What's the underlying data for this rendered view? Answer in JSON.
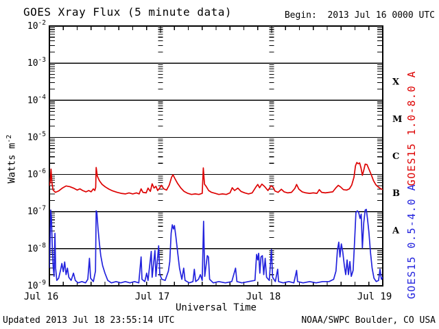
{
  "title": "GOES Xray Flux (5 minute data)",
  "begin_label": "Begin:  2013 Jul 16 0000 UTC",
  "footer": {
    "updated": "Updated 2013 Jul 18 23:55:14 UTC",
    "source": "NOAA/SWPC Boulder, CO USA"
  },
  "colors": {
    "background": "#ffffff",
    "axis": "#000000",
    "long_channel": "#dd0000",
    "short_channel": "#2222dd"
  },
  "chart_data": {
    "type": "line",
    "title": "GOES Xray Flux (5 minute data)",
    "xlabel": "Universal Time",
    "ylabel_base": "Watts m",
    "ylabel_exponent": "-2",
    "x_unit": "hours from 2013 Jul 16 0000 UTC",
    "x_range_hours": [
      0,
      72
    ],
    "x_minor_tick_hours": 3,
    "x_major_ticks": [
      {
        "label": "Jul 16",
        "hour": 0
      },
      {
        "label": "Jul 17",
        "hour": 24
      },
      {
        "label": "Jul 18",
        "hour": 48
      },
      {
        "label": "Jul 19",
        "hour": 72
      }
    ],
    "y_scale": "log",
    "y_range": [
      1e-09,
      0.01
    ],
    "y_tick_exponents": [
      -2,
      -3,
      -4,
      -5,
      -6,
      -7,
      -8,
      -9
    ],
    "grid": "solid horizontal decade lines; dashed vertical lines at interior day boundaries",
    "flare_class_labels": [
      {
        "label": "X",
        "log_center": -3.5
      },
      {
        "label": "M",
        "log_center": -4.5
      },
      {
        "label": "C",
        "log_center": -5.5
      },
      {
        "label": "B",
        "log_center": -6.5
      },
      {
        "label": "A",
        "log_center": -7.5
      }
    ],
    "series": [
      {
        "name": "GOES15 1.0-8.0 A",
        "color": "#dd0000",
        "points": [
          [
            0,
            5e-07
          ],
          [
            0.2,
            6.5e-07
          ],
          [
            0.35,
            1.4e-06
          ],
          [
            0.55,
            6e-07
          ],
          [
            0.8,
            3.8e-07
          ],
          [
            1.3,
            3.3e-07
          ],
          [
            2,
            3.6e-07
          ],
          [
            2.8,
            4.3e-07
          ],
          [
            3.6,
            4.9e-07
          ],
          [
            4.4,
            4.7e-07
          ],
          [
            5.2,
            4.3e-07
          ],
          [
            6,
            3.8e-07
          ],
          [
            6.6,
            4.1e-07
          ],
          [
            7.2,
            3.7e-07
          ],
          [
            7.9,
            3.4e-07
          ],
          [
            8.5,
            3.7e-07
          ],
          [
            9,
            3.4e-07
          ],
          [
            9.5,
            4.1e-07
          ],
          [
            9.8,
            3.7e-07
          ],
          [
            10,
            4.5e-07
          ],
          [
            10.1,
            1.55e-06
          ],
          [
            10.35,
            9e-07
          ],
          [
            10.8,
            6.8e-07
          ],
          [
            11.4,
            5.4e-07
          ],
          [
            12.1,
            4.6e-07
          ],
          [
            12.9,
            4e-07
          ],
          [
            13.7,
            3.6e-07
          ],
          [
            14.6,
            3.3e-07
          ],
          [
            15.5,
            3.1e-07
          ],
          [
            16.4,
            3e-07
          ],
          [
            17.2,
            3.2e-07
          ],
          [
            18,
            3e-07
          ],
          [
            18.8,
            3.2e-07
          ],
          [
            19.4,
            3e-07
          ],
          [
            19.8,
            4.1e-07
          ],
          [
            20.2,
            3.3e-07
          ],
          [
            20.9,
            3.2e-07
          ],
          [
            21.3,
            4.3e-07
          ],
          [
            21.8,
            3.5e-07
          ],
          [
            22.2,
            5.6e-07
          ],
          [
            22.6,
            4.3e-07
          ],
          [
            23,
            4.8e-07
          ],
          [
            23.4,
            3.7e-07
          ],
          [
            23.8,
            4.3e-07
          ],
          [
            24.2,
            5.1e-07
          ],
          [
            24.7,
            4.1e-07
          ],
          [
            25.3,
            3.8e-07
          ],
          [
            25.9,
            5.2e-07
          ],
          [
            26.4,
            8.5e-07
          ],
          [
            26.7,
            9.8e-07
          ],
          [
            27.1,
            7.8e-07
          ],
          [
            27.7,
            5.7e-07
          ],
          [
            28.4,
            4.3e-07
          ],
          [
            29.1,
            3.5e-07
          ],
          [
            29.9,
            3.1e-07
          ],
          [
            30.7,
            2.9e-07
          ],
          [
            31.5,
            3e-07
          ],
          [
            32.3,
            2.9e-07
          ],
          [
            33,
            3.1e-07
          ],
          [
            33.25,
            1.5e-06
          ],
          [
            33.5,
            5.5e-07
          ],
          [
            33.9,
            4.7e-07
          ],
          [
            34.4,
            3.7e-07
          ],
          [
            35,
            3.3e-07
          ],
          [
            35.8,
            3.1e-07
          ],
          [
            36.6,
            2.9e-07
          ],
          [
            37.4,
            3e-07
          ],
          [
            38.2,
            2.9e-07
          ],
          [
            39,
            3.2e-07
          ],
          [
            39.5,
            4.4e-07
          ],
          [
            40,
            3.7e-07
          ],
          [
            40.7,
            4.3e-07
          ],
          [
            41.4,
            3.5e-07
          ],
          [
            42.2,
            3.2e-07
          ],
          [
            43,
            3e-07
          ],
          [
            43.8,
            3.2e-07
          ],
          [
            44.6,
            4.6e-07
          ],
          [
            45,
            5.4e-07
          ],
          [
            45.4,
            4.4e-07
          ],
          [
            45.9,
            5.5e-07
          ],
          [
            46.5,
            4.7e-07
          ],
          [
            47.2,
            3.7e-07
          ],
          [
            47.9,
            5e-07
          ],
          [
            48.4,
            4.4e-07
          ],
          [
            48.7,
            3.6e-07
          ],
          [
            49.4,
            3.3e-07
          ],
          [
            50.1,
            4e-07
          ],
          [
            50.7,
            3.4e-07
          ],
          [
            51.5,
            3.2e-07
          ],
          [
            52.3,
            3.3e-07
          ],
          [
            53,
            4.2e-07
          ],
          [
            53.4,
            5.4e-07
          ],
          [
            53.9,
            4e-07
          ],
          [
            54.6,
            3.4e-07
          ],
          [
            55.4,
            3.2e-07
          ],
          [
            56.2,
            3.1e-07
          ],
          [
            57,
            3.2e-07
          ],
          [
            57.8,
            3.1e-07
          ],
          [
            58.3,
            3.9e-07
          ],
          [
            58.8,
            3.3e-07
          ],
          [
            59.6,
            3.2e-07
          ],
          [
            60.4,
            3.3e-07
          ],
          [
            61.2,
            3.4e-07
          ],
          [
            61.9,
            4.4e-07
          ],
          [
            62.4,
            5.1e-07
          ],
          [
            62.9,
            4.6e-07
          ],
          [
            63.5,
            3.9e-07
          ],
          [
            64.2,
            3.8e-07
          ],
          [
            64.8,
            4.1e-07
          ],
          [
            65.3,
            5.2e-07
          ],
          [
            65.8,
            8.5e-07
          ],
          [
            66.1,
            1.7e-06
          ],
          [
            66.4,
            2.1e-06
          ],
          [
            66.7,
            1.95e-06
          ],
          [
            67,
            2.05e-06
          ],
          [
            67.3,
            1.5e-06
          ],
          [
            67.6,
            9.5e-07
          ],
          [
            67.9,
            1.3e-06
          ],
          [
            68.2,
            1.9e-06
          ],
          [
            68.6,
            1.85e-06
          ],
          [
            69,
            1.4e-06
          ],
          [
            69.5,
            1e-06
          ],
          [
            70,
            6.8e-07
          ],
          [
            70.5,
            5.3e-07
          ],
          [
            71,
            4.6e-07
          ],
          [
            71.5,
            4.2e-07
          ],
          [
            72,
            3.9e-07
          ]
        ]
      },
      {
        "name": "GOES15 0.5-4.0 A",
        "color": "#2222dd",
        "points": [
          [
            0,
            3e-09
          ],
          [
            0.15,
            1.5e-08
          ],
          [
            0.3,
            1.1e-07
          ],
          [
            0.45,
            7e-08
          ],
          [
            0.6,
            1.5e-08
          ],
          [
            0.8,
            3.5e-09
          ],
          [
            1,
            1.8e-09
          ],
          [
            1.2,
            2.6e-08
          ],
          [
            1.35,
            3e-09
          ],
          [
            1.6,
            1.4e-09
          ],
          [
            2,
            1.6e-09
          ],
          [
            2.4,
            2.6e-09
          ],
          [
            2.7,
            4e-09
          ],
          [
            3,
            2.4e-09
          ],
          [
            3.3,
            4.4e-09
          ],
          [
            3.6,
            2e-09
          ],
          [
            3.9,
            3e-09
          ],
          [
            4.2,
            1.7e-09
          ],
          [
            4.7,
            1.4e-09
          ],
          [
            5.2,
            2.2e-09
          ],
          [
            5.6,
            1.4e-09
          ],
          [
            6.2,
            1.2e-09
          ],
          [
            7,
            1.3e-09
          ],
          [
            7.8,
            1.2e-09
          ],
          [
            8.3,
            1.5e-09
          ],
          [
            8.65,
            5.5e-09
          ],
          [
            8.9,
            1.6e-09
          ],
          [
            9.5,
            1.3e-09
          ],
          [
            9.95,
            2.5e-09
          ],
          [
            10.1,
            1.05e-07
          ],
          [
            10.25,
            9.5e-08
          ],
          [
            10.5,
            3.5e-08
          ],
          [
            10.8,
            1.4e-08
          ],
          [
            11.1,
            6.5e-09
          ],
          [
            11.5,
            3.5e-09
          ],
          [
            12,
            2.2e-09
          ],
          [
            12.6,
            1.4e-09
          ],
          [
            13.4,
            1.2e-09
          ],
          [
            14.4,
            1.3e-09
          ],
          [
            15.4,
            1.2e-09
          ],
          [
            16.4,
            1.3e-09
          ],
          [
            17.4,
            1.2e-09
          ],
          [
            18.4,
            1.3e-09
          ],
          [
            19.3,
            1.2e-09
          ],
          [
            19.8,
            6e-09
          ],
          [
            20,
            1.5e-09
          ],
          [
            20.6,
            1.3e-09
          ],
          [
            21,
            2.2e-09
          ],
          [
            21.3,
            1.4e-09
          ],
          [
            22,
            8.5e-09
          ],
          [
            22.2,
            1.7e-09
          ],
          [
            22.8,
            9e-09
          ],
          [
            23,
            1.8e-09
          ],
          [
            23.6,
            1.2e-08
          ],
          [
            23.85,
            2e-09
          ],
          [
            24.3,
            1.5e-09
          ],
          [
            25,
            1.4e-09
          ],
          [
            25.7,
            2.5e-09
          ],
          [
            26,
            4.5e-09
          ],
          [
            26.3,
            2.6e-08
          ],
          [
            26.55,
            4.4e-08
          ],
          [
            26.8,
            3.4e-08
          ],
          [
            27,
            4.2e-08
          ],
          [
            27.3,
            2.2e-08
          ],
          [
            27.7,
            8e-09
          ],
          [
            28.1,
            3e-09
          ],
          [
            28.6,
            1.5e-09
          ],
          [
            29,
            3e-09
          ],
          [
            29.3,
            1.4e-09
          ],
          [
            30.2,
            1.2e-09
          ],
          [
            31,
            1.3e-09
          ],
          [
            31.3,
            2.8e-09
          ],
          [
            31.6,
            1.3e-09
          ],
          [
            32.2,
            1.5e-09
          ],
          [
            32.6,
            2e-09
          ],
          [
            33,
            1.4e-09
          ],
          [
            33.3,
            5.5e-08
          ],
          [
            33.55,
            1.8e-09
          ],
          [
            34.1,
            6.5e-09
          ],
          [
            34.35,
            6e-09
          ],
          [
            34.6,
            1.5e-09
          ],
          [
            35.4,
            1.2e-09
          ],
          [
            36.6,
            1.3e-09
          ],
          [
            38,
            1.2e-09
          ],
          [
            39.4,
            1.3e-09
          ],
          [
            40.2,
            3e-09
          ],
          [
            40.5,
            1.3e-09
          ],
          [
            41.6,
            1.2e-09
          ],
          [
            43,
            1.3e-09
          ],
          [
            44.4,
            1.4e-09
          ],
          [
            44.75,
            7e-09
          ],
          [
            45,
            5e-09
          ],
          [
            45.2,
            7.5e-09
          ],
          [
            45.45,
            2.2e-09
          ],
          [
            45.7,
            6e-09
          ],
          [
            46,
            6.5e-09
          ],
          [
            46.3,
            2e-09
          ],
          [
            46.6,
            5.5e-09
          ],
          [
            46.9,
            1.7e-09
          ],
          [
            47.5,
            1.4e-09
          ],
          [
            47.95,
            9.5e-09
          ],
          [
            48.2,
            1.7e-09
          ],
          [
            48.8,
            1.3e-09
          ],
          [
            49.3,
            2.8e-09
          ],
          [
            49.5,
            1.3e-09
          ],
          [
            50.5,
            1.2e-09
          ],
          [
            51.7,
            1.3e-09
          ],
          [
            52.8,
            1.2e-09
          ],
          [
            53.4,
            2.6e-09
          ],
          [
            53.6,
            1.3e-09
          ],
          [
            54.8,
            1.2e-09
          ],
          [
            56.2,
            1.3e-09
          ],
          [
            57.6,
            1.2e-09
          ],
          [
            59,
            1.3e-09
          ],
          [
            60.4,
            1.3e-09
          ],
          [
            61.4,
            1.5e-09
          ],
          [
            61.9,
            2.5e-09
          ],
          [
            62.2,
            9e-09
          ],
          [
            62.5,
            1.5e-08
          ],
          [
            62.75,
            6e-09
          ],
          [
            63.05,
            1.35e-08
          ],
          [
            63.35,
            8.5e-09
          ],
          [
            63.7,
            3.5e-09
          ],
          [
            64,
            2e-09
          ],
          [
            64.3,
            5e-09
          ],
          [
            64.6,
            2e-09
          ],
          [
            64.9,
            4.5e-09
          ],
          [
            65.2,
            1.8e-09
          ],
          [
            65.6,
            2.6e-09
          ],
          [
            65.9,
            1.4e-08
          ],
          [
            66.2,
            9.5e-08
          ],
          [
            66.5,
            1.05e-07
          ],
          [
            66.8,
            9.5e-08
          ],
          [
            67.1,
            6.5e-08
          ],
          [
            67.35,
            8.5e-08
          ],
          [
            67.6,
            1.05e-08
          ],
          [
            67.9,
            5e-08
          ],
          [
            68.2,
            1.1e-07
          ],
          [
            68.45,
            1.15e-07
          ],
          [
            68.7,
            6.5e-08
          ],
          [
            69,
            2.8e-08
          ],
          [
            69.35,
            8e-09
          ],
          [
            69.7,
            3e-09
          ],
          [
            70.1,
            1.6e-09
          ],
          [
            70.6,
            1.3e-09
          ],
          [
            71.1,
            1.4e-09
          ],
          [
            71.4,
            2.8e-09
          ],
          [
            71.7,
            1.5e-09
          ],
          [
            72,
            1.7e-09
          ]
        ]
      }
    ]
  }
}
